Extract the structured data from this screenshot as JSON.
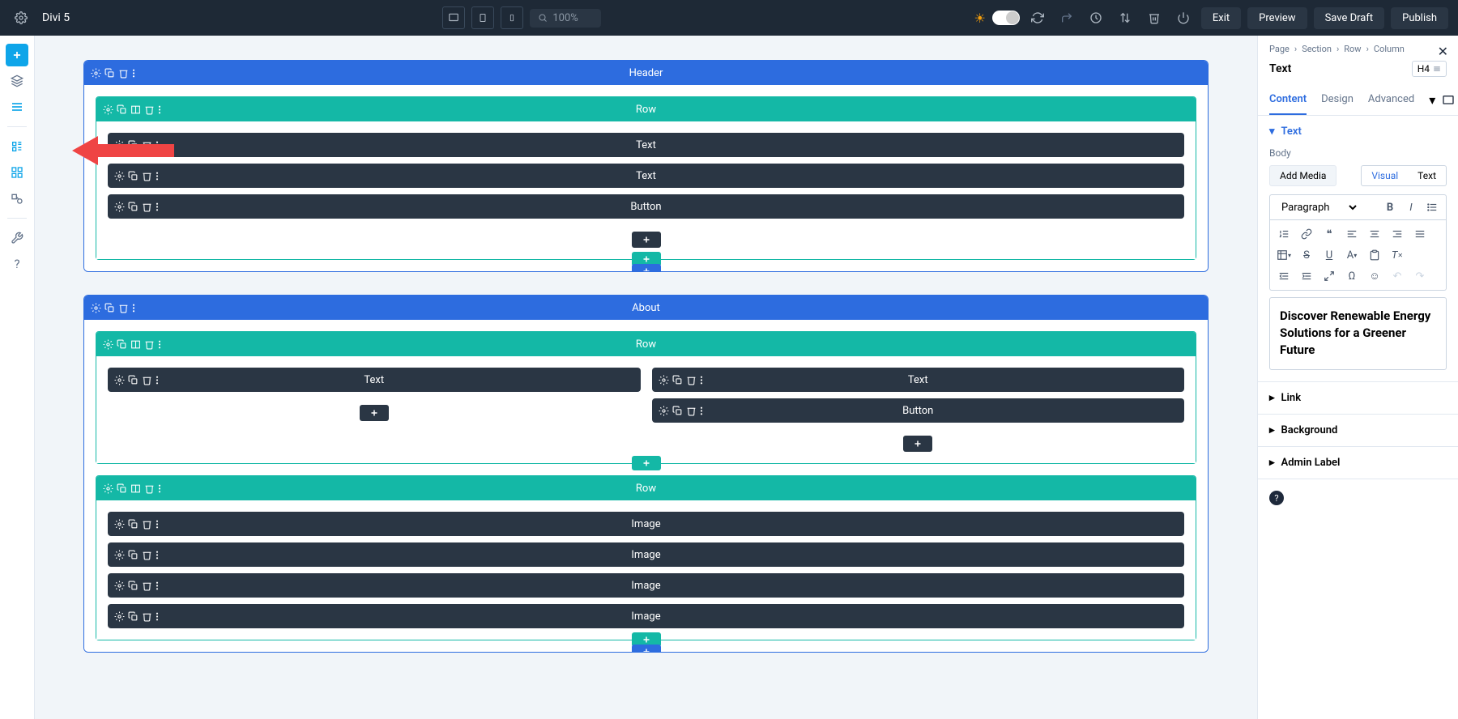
{
  "topbar": {
    "title": "Divi 5",
    "zoom": "100%",
    "exit": "Exit",
    "preview": "Preview",
    "save_draft": "Save Draft",
    "publish": "Publish"
  },
  "arrow_color": "#ef4444",
  "sections": [
    {
      "title": "Header",
      "rows": [
        {
          "title": "Row",
          "columns": [
            {
              "modules": [
                "Text",
                "Text",
                "Button"
              ],
              "show_add": true
            }
          ]
        }
      ]
    },
    {
      "title": "About",
      "rows": [
        {
          "title": "Row",
          "columns": [
            {
              "modules": [
                "Text"
              ],
              "show_add": true
            },
            {
              "modules": [
                "Text",
                "Button"
              ],
              "show_add": true
            }
          ]
        },
        {
          "title": "Row",
          "columns": [
            {
              "modules": [
                "Image",
                "Image",
                "Image",
                "Image"
              ],
              "show_add": false
            }
          ]
        }
      ]
    }
  ],
  "right_panel": {
    "breadcrumb": [
      "Page",
      "Section",
      "Row",
      "Column"
    ],
    "title": "Text",
    "heading_level": "H4",
    "tabs": [
      "Content",
      "Design",
      "Advanced"
    ],
    "active_tab": "Content",
    "accordion": {
      "text": "Text",
      "link": "Link",
      "background": "Background",
      "admin_label": "Admin Label"
    },
    "body_label": "Body",
    "add_media": "Add Media",
    "editor_tabs": {
      "visual": "Visual",
      "text": "Text"
    },
    "paragraph_label": "Paragraph",
    "editor_content": "Discover Renewable Energy Solutions for a Greener Future"
  },
  "colors": {
    "section_blue": "#2d6cdf",
    "row_green": "#14b8a6",
    "module_dark": "#2a3644",
    "topbar": "#1e2936"
  }
}
